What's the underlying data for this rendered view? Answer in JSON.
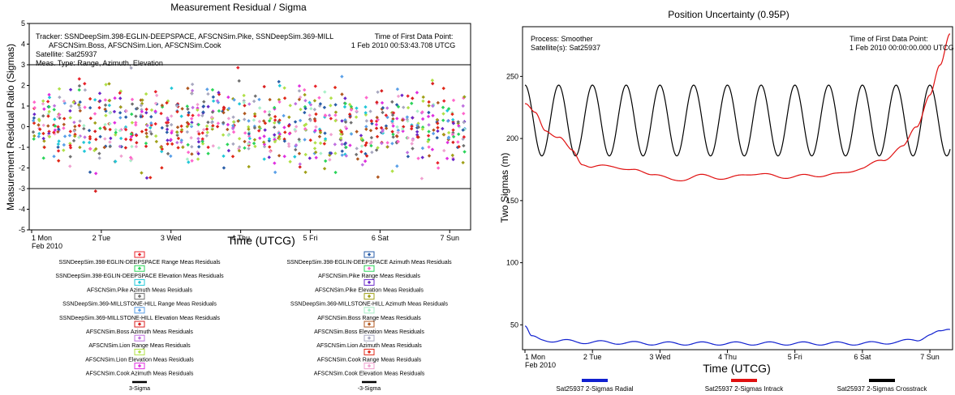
{
  "chart_data": [
    {
      "type": "scatter",
      "title": "Measurement Residual / Sigma",
      "xlabel": "Time (UTCG)",
      "ylabel": "Measurement Residual Ratio (Sigmas)",
      "ylim": [
        -5,
        5
      ],
      "y_ticks": [
        -5,
        -4,
        -3,
        -2,
        -1,
        0,
        1,
        2,
        3,
        4,
        5
      ],
      "x_range": [
        0,
        6.3
      ],
      "x_ticks": [
        {
          "x": 0,
          "label": "1 Mon",
          "sub": "Feb 2010"
        },
        {
          "x": 1,
          "label": "2 Tue"
        },
        {
          "x": 2,
          "label": "3 Wed"
        },
        {
          "x": 3,
          "label": "4 Thu"
        },
        {
          "x": 4,
          "label": "5 Fri"
        },
        {
          "x": 5,
          "label": "6 Sat"
        },
        {
          "x": 6,
          "label": "7 Sun"
        }
      ],
      "sigma_lines": [
        3,
        -3
      ],
      "annotations": {
        "tracker_line1": "Tracker: SSNDeepSim.398-EGLIN-DEEPSPACE,  AFSCNSim.Pike,  SSNDeepSim.369-MILL",
        "tracker_line2": "AFSCNSim.Boss,  AFSCNSim.Lion,  AFSCNSim.Cook",
        "satellite": "Satellite: Sat25937",
        "meas_type": "Meas. Type: Range, Azimuth, Elevation",
        "first_point_label": "Time of First Data Point:",
        "first_point_value": "1 Feb 2010 00:53:43.708 UTCG"
      },
      "series": [
        {
          "name": "SSNDeepSim.398-EGLIN-DEEPSPACE Range Meas Residuals",
          "color": "#e8242c",
          "box": "#e8242c"
        },
        {
          "name": "SSNDeepSim.398-EGLIN-DEEPSPACE Azimuth Meas Residuals",
          "color": "#2a5ea8",
          "box": "#2a5ea8"
        },
        {
          "name": "SSNDeepSim.398-EGLIN-DEEPSPACE Elevation Meas Residuals",
          "color": "#2bd45a",
          "box": "#2bd45a"
        },
        {
          "name": "AFSCNSim.Pike Range Meas Residuals",
          "color": "#ff66cc",
          "box": "#2bd45a"
        },
        {
          "name": "AFSCNSim.Pike Azimuth Meas Residuals",
          "color": "#22c8d8",
          "box": "#22c8d8"
        },
        {
          "name": "AFSCNSim.Pike Elevation Meas Residuals",
          "color": "#6a28c8",
          "box": "#6a28c8"
        },
        {
          "name": "SSNDeepSim.369-MILLSTONE-HILL Range Meas Residuals",
          "color": "#707070",
          "box": "#707070"
        },
        {
          "name": "SSNDeepSim.369-MILLSTONE-HILL Azimuth Meas Residuals",
          "color": "#a0a018",
          "box": "#a0a018"
        },
        {
          "name": "SSNDeepSim.369-MILLSTONE-HILL Elevation Meas Residuals",
          "color": "#5aa0e8",
          "box": "#5aa0e8"
        },
        {
          "name": "AFSCNSim.Boss Range Meas Residuals",
          "color": "#a8f0c8",
          "box": "#a8f0c8"
        },
        {
          "name": "AFSCNSim.Boss Azimuth Meas Residuals",
          "color": "#d82020",
          "box": "#d82020"
        },
        {
          "name": "AFSCNSim.Boss Elevation Meas Residuals",
          "color": "#b05820",
          "box": "#b05820"
        },
        {
          "name": "AFSCNSim.Lion Range Meas Residuals",
          "color": "#c070e0",
          "box": "#c070e0"
        },
        {
          "name": "AFSCNSim.Lion Azimuth Meas Residuals",
          "color": "#a8a8c0",
          "box": "#a8a8c0"
        },
        {
          "name": "AFSCNSim.Lion Elevation Meas Residuals",
          "color": "#b0e048",
          "box": "#b0e048"
        },
        {
          "name": "AFSCNSim.Cook Range Meas Residuals",
          "color": "#e02818",
          "box": "#e02818"
        },
        {
          "name": "AFSCNSim.Cook Azimuth Meas Residuals",
          "color": "#e030e0",
          "box": "#e030e0"
        },
        {
          "name": "AFSCNSim.Cook Elevation Meas Residuals",
          "color": "#f0a0d0",
          "box": "#f0a0d0"
        }
      ],
      "sigma_legend": [
        {
          "name": "3-Sigma",
          "color": "#000000"
        },
        {
          "name": "-3-Sigma",
          "color": "#000000"
        }
      ]
    },
    {
      "type": "line",
      "title": "Position Uncertainty (0.95P)",
      "xlabel": "Time (UTCG)",
      "ylabel": "Two Sigmas (m)",
      "ylim": [
        30,
        290
      ],
      "y_ticks": [
        50,
        100,
        150,
        200,
        250
      ],
      "x_range": [
        0,
        6.3
      ],
      "x_ticks": [
        {
          "x": 0,
          "label": "1 Mon",
          "sub": "Feb 2010"
        },
        {
          "x": 1,
          "label": "2 Tue"
        },
        {
          "x": 2,
          "label": "3 Wed"
        },
        {
          "x": 3,
          "label": "4 Thu"
        },
        {
          "x": 4,
          "label": "5 Fri"
        },
        {
          "x": 5,
          "label": "6 Sat"
        },
        {
          "x": 6,
          "label": "7 Sun"
        }
      ],
      "annotations": {
        "process": "Process: Smoother",
        "satellite": "Satellite(s): Sat25937",
        "first_point_label": "Time of First Data Point:",
        "first_point_value": "1 Feb 2010 00:00:00.000 UTCG"
      },
      "series": [
        {
          "name": "Sat25937 2-Sigmas Radial",
          "color": "#1020d0",
          "x": [
            0,
            0.1,
            0.25,
            0.5,
            1,
            2,
            3,
            4,
            5,
            5.5,
            5.8,
            6.0,
            6.15,
            6.3
          ],
          "y": [
            49,
            40,
            38,
            37,
            36,
            35,
            35,
            35,
            35,
            36,
            38,
            42,
            44,
            47
          ]
        },
        {
          "name": "Sat25937 2-Sigmas Intrack",
          "color": "#e01010",
          "x": [
            0,
            0.15,
            0.3,
            0.5,
            0.7,
            0.85,
            1.0,
            1.3,
            1.6,
            1.9,
            2.2,
            2.6,
            3.0,
            3.4,
            3.8,
            4.2,
            4.6,
            5.0,
            5.3,
            5.6,
            5.8,
            6.0,
            6.15,
            6.3
          ],
          "y": [
            228,
            220,
            207,
            201,
            190,
            180,
            177,
            178,
            174,
            172,
            166,
            170,
            168,
            172,
            169,
            170,
            171,
            176,
            183,
            193,
            210,
            235,
            258,
            285
          ]
        },
        {
          "name": "Sat25937 2-Sigmas Crosstrack",
          "color": "#000000",
          "amplitude_low": 186,
          "amplitude_high": 243,
          "period_days": 0.5,
          "x_start": 0,
          "x_end": 6.3
        }
      ]
    }
  ]
}
